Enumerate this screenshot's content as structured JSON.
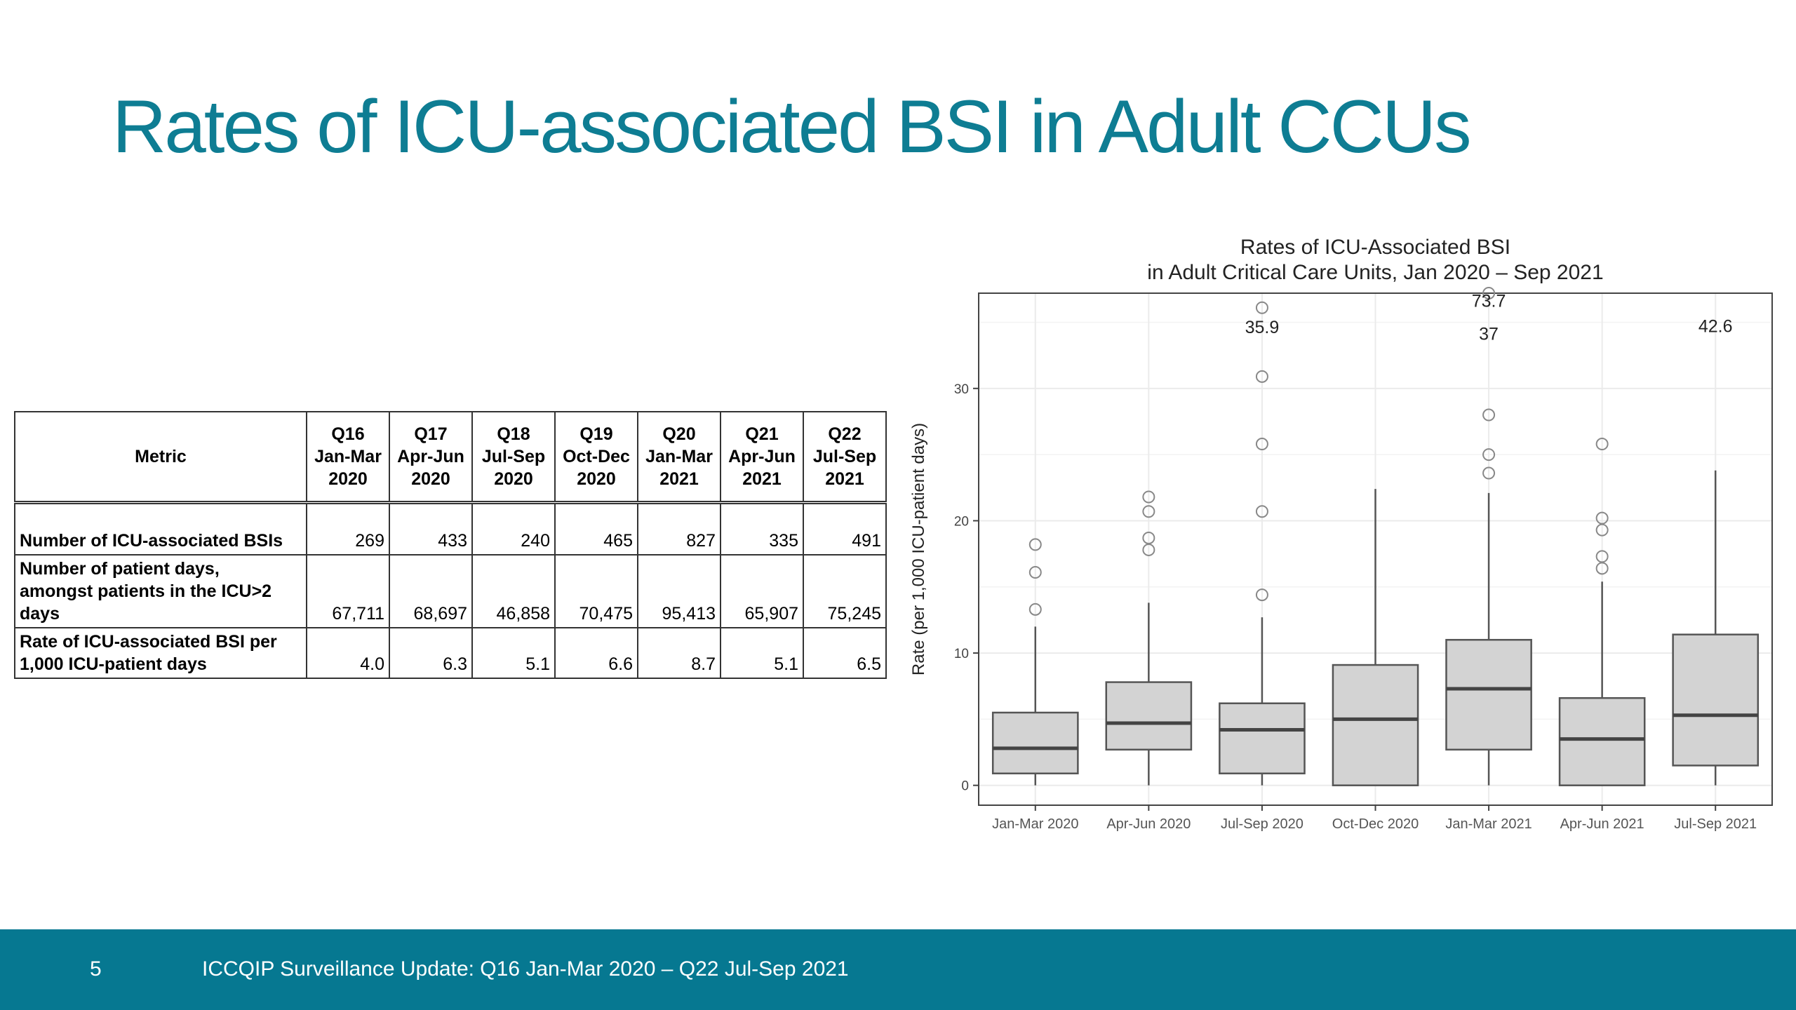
{
  "slide": {
    "title": "Rates of ICU-associated BSI in Adult CCUs"
  },
  "table": {
    "header": {
      "metric": "Metric",
      "quarters": [
        [
          "Q16",
          "Jan-Mar",
          "2020"
        ],
        [
          "Q17",
          "Apr-Jun",
          "2020"
        ],
        [
          "Q18",
          "Jul-Sep",
          "2020"
        ],
        [
          "Q19",
          "Oct-Dec",
          "2020"
        ],
        [
          "Q20",
          "Jan-Mar",
          "2021"
        ],
        [
          "Q21",
          "Apr-Jun",
          "2021"
        ],
        [
          "Q22",
          "Jul-Sep",
          "2021"
        ]
      ]
    },
    "rows": [
      {
        "label": [
          "Number of ICU-associated BSIs"
        ],
        "values": [
          "269",
          "433",
          "240",
          "465",
          "827",
          "335",
          "491"
        ]
      },
      {
        "label": [
          "Number of patient days,",
          "amongst patients in the ICU>2",
          "days"
        ],
        "values": [
          "67,711",
          "68,697",
          "46,858",
          "70,475",
          "95,413",
          "65,907",
          "75,245"
        ]
      },
      {
        "label": [
          "Rate of ICU-associated BSI per",
          "1,000 ICU-patient days"
        ],
        "values": [
          "4.0",
          "6.3",
          "5.1",
          "6.6",
          "8.7",
          "5.1",
          "6.5"
        ]
      }
    ]
  },
  "chart_data": {
    "type": "boxplot",
    "title": [
      "Rates of ICU-Associated BSI",
      "in Adult Critical Care Units, Jan 2020 – Sep 2021"
    ],
    "xlabel": "",
    "ylabel": "Rate (per 1,000 ICU-patient days)",
    "ylim": [
      -1.5,
      37.2
    ],
    "yticks": [
      0,
      10,
      20,
      30
    ],
    "grid": true,
    "categories": [
      "Jan-Mar 2020",
      "Apr-Jun 2020",
      "Jul-Sep 2020",
      "Oct-Dec 2020",
      "Jan-Mar 2021",
      "Apr-Jun 2021",
      "Jul-Sep 2021"
    ],
    "boxes": [
      {
        "whisker_low": 0,
        "q1": 0.9,
        "median": 2.8,
        "q3": 5.5,
        "whisker_high": 12.0,
        "outliers": [
          13.3,
          16.1,
          18.2
        ]
      },
      {
        "whisker_low": 0,
        "q1": 2.7,
        "median": 4.7,
        "q3": 7.8,
        "whisker_high": 13.8,
        "outliers": [
          17.8,
          18.7,
          20.7,
          21.8
        ]
      },
      {
        "whisker_low": 0,
        "q1": 0.9,
        "median": 4.2,
        "q3": 6.2,
        "whisker_high": 12.7,
        "outliers": [
          14.4,
          20.7,
          25.8,
          30.9,
          36.1
        ]
      },
      {
        "whisker_low": 0,
        "q1": 0,
        "median": 5.0,
        "q3": 9.1,
        "whisker_high": 22.4,
        "outliers": []
      },
      {
        "whisker_low": 0,
        "q1": 2.7,
        "median": 7.3,
        "q3": 11.0,
        "whisker_high": 22.1,
        "outliers": [
          23.6,
          25.0,
          28.0,
          37.2
        ]
      },
      {
        "whisker_low": 0,
        "q1": 0,
        "median": 3.5,
        "q3": 6.6,
        "whisker_high": 15.4,
        "outliers": [
          16.4,
          17.3,
          19.3,
          20.2,
          25.8
        ]
      },
      {
        "whisker_low": 0,
        "q1": 1.5,
        "median": 5.3,
        "q3": 11.4,
        "whisker_high": 23.8,
        "outliers": []
      }
    ],
    "annotations": [
      {
        "text": "35.9",
        "category": 2,
        "y": 34.7
      },
      {
        "text": "73.7",
        "category": 4,
        "y": 36.7
      },
      {
        "text": "37",
        "category": 4,
        "y": 34.2
      },
      {
        "text": "42.6",
        "category": 6,
        "y": 34.8
      }
    ]
  },
  "footer": {
    "page_number": "5",
    "text": "ICCQIP Surveillance Update: Q16 Jan-Mar 2020 – Q22 Jul-Sep 2021",
    "background": "#067891"
  },
  "colors": {
    "title": "#0e7d93",
    "box_fill": "#d3d3d3",
    "box_stroke": "#555555",
    "grid": "#ebebeb"
  }
}
